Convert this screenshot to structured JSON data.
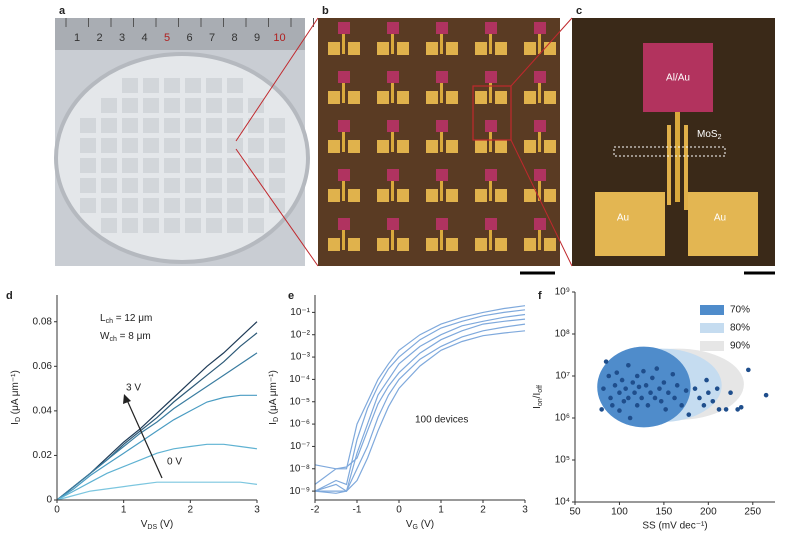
{
  "panels": [
    "a",
    "b",
    "c",
    "d",
    "e",
    "f"
  ],
  "ruler": [
    "1",
    "2",
    "3",
    "4",
    "5",
    "6",
    "7",
    "8",
    "9",
    "10"
  ],
  "device": {
    "top_pad": "Al/Au",
    "channel": [
      "MoS",
      "2"
    ],
    "left_pad": "Au",
    "right_pad": "Au"
  },
  "chart_data": [
    {
      "type": "line",
      "xlabel": [
        "V",
        "DS",
        " (V)"
      ],
      "ylabel": [
        "I",
        "D",
        " (μA μm⁻¹)"
      ],
      "label_lines": [
        [
          "L",
          "ch",
          " = 12 μm"
        ],
        [
          "W",
          "ch",
          " = 8 μm"
        ]
      ],
      "arrow_labels": [
        "3 V",
        "0 V"
      ],
      "x": [
        0,
        0.25,
        0.5,
        0.75,
        1,
        1.25,
        1.5,
        1.75,
        2,
        2.25,
        2.5,
        2.75,
        3
      ],
      "xlim": [
        0,
        3
      ],
      "xticks": [
        0,
        1,
        2,
        3
      ],
      "ylim": [
        0,
        0.092
      ],
      "yticks": [
        0,
        0.02,
        0.04,
        0.06,
        0.08
      ],
      "series": [
        {
          "color": "#1f3b57",
          "values": [
            0,
            0.006,
            0.012,
            0.019,
            0.026,
            0.032,
            0.039,
            0.046,
            0.053,
            0.06,
            0.066,
            0.073,
            0.08
          ]
        },
        {
          "color": "#2d5a78",
          "values": [
            0,
            0.006,
            0.012,
            0.018,
            0.025,
            0.031,
            0.037,
            0.044,
            0.05,
            0.056,
            0.062,
            0.069,
            0.075
          ]
        },
        {
          "color": "#3a7ca0",
          "values": [
            0,
            0.006,
            0.012,
            0.018,
            0.024,
            0.03,
            0.035,
            0.041,
            0.046,
            0.051,
            0.056,
            0.061,
            0.066
          ]
        },
        {
          "color": "#4a9cc2",
          "values": [
            0,
            0.005,
            0.011,
            0.016,
            0.021,
            0.026,
            0.031,
            0.036,
            0.04,
            0.044,
            0.046,
            0.047,
            0.047
          ]
        },
        {
          "color": "#5fb2d2",
          "values": [
            0,
            0.004,
            0.008,
            0.012,
            0.015,
            0.018,
            0.021,
            0.023,
            0.024,
            0.025,
            0.025,
            0.024,
            0.023
          ]
        },
        {
          "color": "#7cc6df",
          "values": [
            0,
            0.002,
            0.004,
            0.005,
            0.006,
            0.007,
            0.008,
            0.008,
            0.008,
            0.008,
            0.008,
            0.008,
            0.007
          ]
        }
      ]
    },
    {
      "type": "line",
      "log_y": true,
      "xlabel": [
        "V",
        "G",
        " (V)"
      ],
      "ylabel": [
        "I",
        "D",
        " (μA μm⁻¹)"
      ],
      "annotation": "100 devices",
      "x": [
        -2,
        -1.5,
        -1.25,
        -1,
        -0.75,
        -0.5,
        -0.25,
        0,
        0.5,
        1,
        1.5,
        2,
        2.5,
        3
      ],
      "xlim": [
        -2,
        3
      ],
      "xticks": [
        -2,
        -1,
        0,
        1,
        2,
        3
      ],
      "ylim": [
        4e-10,
        0.6
      ],
      "yticks": [
        {
          "value": 1e-09,
          "label": "10⁻⁹"
        },
        {
          "value": 1e-08,
          "label": "10⁻⁸"
        },
        {
          "value": 1e-07,
          "label": "10⁻⁷"
        },
        {
          "value": 1e-06,
          "label": "10⁻⁶"
        },
        {
          "value": 1e-05,
          "label": "10⁻⁵"
        },
        {
          "value": 0.0001,
          "label": "10⁻⁴"
        },
        {
          "value": 0.001,
          "label": "10⁻³"
        },
        {
          "value": 0.01,
          "label": "10⁻²"
        },
        {
          "value": 0.1,
          "label": "10⁻¹"
        }
      ],
      "series": [
        {
          "color": "#7fa9dc",
          "values": [
            2e-09,
            1e-08,
            1e-08,
            1e-06,
            1e-05,
            0.0001,
            0.0005,
            0.002,
            0.01,
            0.03,
            0.06,
            0.1,
            0.15,
            0.2
          ]
        },
        {
          "color": "#7fa9dc",
          "values": [
            1e-09,
            3e-09,
            2e-09,
            2e-07,
            5e-06,
            5e-05,
            0.0003,
            0.001,
            0.006,
            0.02,
            0.04,
            0.07,
            0.1,
            0.13
          ]
        },
        {
          "color": "#7fa9dc",
          "values": [
            1e-09,
            2e-09,
            1e-09,
            5e-08,
            1e-06,
            2e-05,
            0.0001,
            0.0005,
            0.003,
            0.01,
            0.025,
            0.04,
            0.06,
            0.08
          ]
        },
        {
          "color": "#7fa9dc",
          "values": [
            1.5e-08,
            1e-08,
            1.2e-08,
            3e-08,
            5e-07,
            8e-06,
            5e-05,
            0.0002,
            0.0015,
            0.006,
            0.015,
            0.03,
            0.04,
            0.05
          ]
        },
        {
          "color": "#7fa9dc",
          "values": [
            1e-09,
            8e-10,
            1e-09,
            1e-08,
            1e-07,
            2e-06,
            2e-05,
            0.0001,
            0.0008,
            0.003,
            0.008,
            0.015,
            0.022,
            0.03
          ]
        },
        {
          "color": "#7fa9dc",
          "values": [
            1e-09,
            1e-09,
            1e-09,
            3e-09,
            3e-08,
            5e-07,
            6e-06,
            4e-05,
            0.0004,
            0.002,
            0.005,
            0.009,
            0.012,
            0.015
          ]
        }
      ]
    },
    {
      "type": "scatter",
      "log_y": true,
      "xlabel": "SS (mV dec⁻¹)",
      "ylabel": [
        "I",
        "on",
        "/",
        "I",
        "off"
      ],
      "xlim": [
        50,
        275
      ],
      "xticks": [
        50,
        100,
        150,
        200,
        250
      ],
      "ylim": [
        10000.0,
        1000000000.0
      ],
      "yticks": [
        {
          "value": 10000.0,
          "label": "10⁴"
        },
        {
          "value": 100000.0,
          "label": "10⁵"
        },
        {
          "value": 1000000.0,
          "label": "10⁶"
        },
        {
          "value": 10000000.0,
          "label": "10⁷"
        },
        {
          "value": 100000000.0,
          "label": "10⁸"
        },
        {
          "value": 1000000000.0,
          "label": "10⁹"
        }
      ],
      "regions": [
        {
          "name": "90%",
          "color": "#e6e6e6",
          "xrange": [
            90,
            240
          ],
          "yrange": [
            900000.0,
            45000000.0
          ]
        },
        {
          "name": "80%",
          "color": "#c5dcf0",
          "xrange": [
            80,
            215
          ],
          "yrange": [
            800000.0,
            45000000.0
          ]
        },
        {
          "name": "70%",
          "color": "#4f8ccb",
          "xrange": [
            75,
            180
          ],
          "yrange": [
            600000.0,
            50000000.0
          ]
        }
      ],
      "series": [
        {
          "color": "#1f4e8c",
          "x": [
            80,
            82,
            85,
            88,
            90,
            92,
            95,
            97,
            100,
            100,
            103,
            105,
            107,
            110,
            110,
            112,
            115,
            117,
            120,
            120,
            122,
            125,
            127,
            130,
            132,
            135,
            137,
            140,
            142,
            145,
            147,
            150,
            152,
            155,
            160,
            162,
            165,
            170,
            175,
            178,
            185,
            190,
            195,
            198,
            200,
            205,
            210,
            212,
            220,
            225,
            233,
            237,
            245,
            265
          ],
          "values": [
            1600000.0,
            5000000.0,
            22000000.0,
            10000000.0,
            3000000.0,
            2000000.0,
            6000000.0,
            12000000.0,
            4000000.0,
            1500000.0,
            8000000.0,
            2500000.0,
            5000000.0,
            18000000.0,
            3000000.0,
            1000000.0,
            7000000.0,
            4000000.0,
            2000000.0,
            10000000.0,
            5500000.0,
            3000000.0,
            13000000.0,
            6000000.0,
            2000000.0,
            4000000.0,
            9000000.0,
            3000000.0,
            15000000.0,
            5000000.0,
            2500000.0,
            7000000.0,
            1600000.0,
            4000000.0,
            11000000.0,
            3000000.0,
            6000000.0,
            2000000.0,
            4500000.0,
            1200000.0,
            5000000.0,
            3000000.0,
            2000000.0,
            8000000.0,
            4000000.0,
            2500000.0,
            5000000.0,
            1600000.0,
            1600000.0,
            4000000.0,
            1600000.0,
            1800000.0,
            14000000.0,
            3500000.0
          ]
        }
      ]
    }
  ]
}
